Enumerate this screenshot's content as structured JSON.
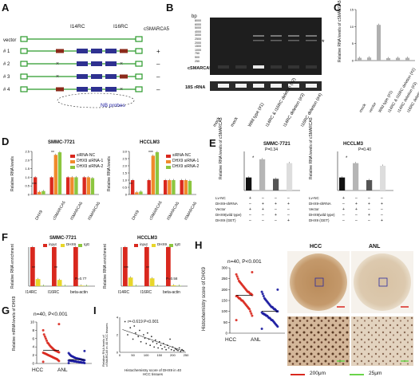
{
  "panels": {
    "A": "A",
    "B": "B",
    "C": "C",
    "D": "D",
    "E": "E",
    "F": "F",
    "G": "G",
    "H": "H",
    "I": "I"
  },
  "a": {
    "vector": "vector",
    "rows": [
      "# 1",
      "# 2",
      "# 3",
      "# 4"
    ],
    "i14": "I14RC",
    "i16": "I16RC",
    "csmarca5": "cSMARCA5",
    "signs": [
      "+",
      "–",
      "–",
      "–"
    ],
    "probe": "NB probes"
  },
  "b": {
    "bp": "bp",
    "ladder": [
      "8000",
      "6000",
      "5000",
      "4000",
      "3000",
      "2500",
      "2000",
      "1500",
      "1000",
      "750",
      "500",
      "250"
    ],
    "band": "cSMARCA5",
    "rrna": "18S rRNA",
    "star": "*",
    "lanes": [
      "mock",
      "mock",
      "Wild type (#1)",
      "I14RC & I16RC deletion (#2)",
      "I14RC deletion (#3)",
      "I16RC deletion (#4)"
    ]
  },
  "c": {
    "ylabel": "Relative RNA levels of cSMARCA5",
    "yt": [
      "0",
      "5",
      "10",
      "15"
    ],
    "cats": [
      "mock",
      "vector",
      "Wild type (#1)",
      "I14RC & I16RC deletion (#2)",
      "I14RC deletion (#3)",
      "I16RC deletion (#4)"
    ]
  },
  "d": {
    "left": "SMMC-7721",
    "right": "HCCLM3",
    "ylabel": "Relative RNA levels",
    "yl": [
      "0",
      "0.5",
      "1.0",
      "1.5",
      "2.0",
      "2.5"
    ],
    "yr": [
      "0",
      "0.5",
      "1.0",
      "1.5",
      "2.0",
      "2.5",
      "3.0"
    ],
    "legend": [
      "siRNA-NC",
      "DHX9 siRNA-1",
      "DHX9 siRNA-2"
    ],
    "cats": [
      "DHX9",
      "cSMARCA5",
      "ISMARCA5",
      "ISMARCA5"
    ],
    "sig": [
      "***",
      "**",
      "**",
      "***"
    ]
  },
  "e": {
    "left": "SMMC-7721",
    "right": "HCCLM3",
    "p1": "P=0.34",
    "p2": "P=0.40",
    "star": "*",
    "ylabel": "Relative RNA levels of cSMARCA5",
    "rows": [
      "Lv-NC",
      "DHX9-shRNA",
      "Vector",
      "DHX9(wild type)",
      "DHX9 (GET)"
    ],
    "signs": [
      [
        "+",
        "–",
        "–",
        "–"
      ],
      [
        "–",
        "+",
        "+",
        "+"
      ],
      [
        "+",
        "+",
        "–",
        "–"
      ],
      [
        "–",
        "–",
        "+",
        "–"
      ],
      [
        "–",
        "–",
        "–",
        "+"
      ]
    ]
  },
  "f": {
    "left": "SMMC-7721",
    "right": "HCCLM3",
    "legend": [
      "input",
      "DHX9",
      "IgG"
    ],
    "ylabel": "Relative RNA enrichment",
    "cats": [
      "I14RC",
      "I16RC",
      "beta-actin"
    ],
    "pl": "P=0.77",
    "pr": "P=0.58",
    "sig": [
      "**",
      "**",
      "***",
      "**"
    ]
  },
  "g": {
    "ylabel": "Relative mRNA levels of DHX9",
    "stat": "n=40,  P<0.001",
    "cats": [
      "HCC",
      "ANL"
    ],
    "yt": [
      "0",
      "2",
      "4",
      "6",
      "8",
      "10"
    ]
  },
  "h": {
    "ylabel": "Histochemistry score of DHX9",
    "stat": "n=40,  P<0.001",
    "cats": [
      "HCC",
      "ANL"
    ],
    "yt": [
      "0",
      "50",
      "100",
      "150",
      "200",
      "250",
      "300"
    ],
    "img1": "HCC",
    "img2": "ANL",
    "scale1": "200μm",
    "scale2": "25μm"
  },
  "i": {
    "ylabel": "Relative RNA levels of cSMARCA5 in 40 HCC tissues",
    "xlabel": "Histochemistry score of DHX9 in 40 HCC tissues",
    "stat": "r=-0.619     P<0.001",
    "xt": [
      "0",
      "50",
      "100",
      "150",
      "200",
      "250"
    ],
    "yt": [
      "0",
      "2",
      "4"
    ]
  },
  "colors": {
    "red": "#d9281e",
    "orange": "#f08a2c",
    "green": "#8cc63f",
    "blue": "#2e3190",
    "darkblue": "#1a1aa0",
    "gray": "#b5b5b5",
    "dark": "#333333"
  },
  "chart_data": [
    {
      "panel": "C",
      "type": "bar",
      "categories": [
        "mock",
        "vector",
        "Wild type (#1)",
        "I14RC & I16RC deletion (#2)",
        "I14RC deletion (#3)",
        "I16RC deletion (#4)"
      ],
      "values": [
        0.8,
        0.9,
        10.5,
        0.7,
        0.8,
        0.8
      ],
      "ylabel": "Relative RNA levels of cSMARCA5",
      "ylim": [
        0,
        15
      ]
    },
    {
      "panel": "D-SMMC-7721",
      "type": "bar",
      "categories": [
        "DHX9",
        "cSMARCA5",
        "ISMARCA5",
        "ISMARCA5"
      ],
      "series": [
        {
          "name": "siRNA-NC",
          "values": [
            1.0,
            1.0,
            1.0,
            1.0
          ]
        },
        {
          "name": "DHX9 siRNA-1",
          "values": [
            0.15,
            2.3,
            1.0,
            1.0
          ]
        },
        {
          "name": "DHX9 siRNA-2",
          "values": [
            0.2,
            2.45,
            1.0,
            0.95
          ]
        }
      ],
      "ylim": [
        0,
        2.5
      ]
    },
    {
      "panel": "D-HCCLM3",
      "type": "bar",
      "categories": [
        "DHX9",
        "cSMARCA5",
        "ISMARCA5",
        "ISMARCA5"
      ],
      "series": [
        {
          "name": "siRNA-NC",
          "values": [
            1.0,
            1.0,
            1.0,
            1.0
          ]
        },
        {
          "name": "DHX9 siRNA-1",
          "values": [
            0.15,
            2.7,
            1.0,
            1.0
          ]
        },
        {
          "name": "DHX9 siRNA-2",
          "values": [
            0.2,
            2.95,
            1.0,
            0.95
          ]
        }
      ],
      "ylim": [
        0,
        3.0
      ]
    },
    {
      "panel": "E-SMMC-7721",
      "type": "bar",
      "values": [
        1.0,
        2.4,
        0.9,
        2.1
      ],
      "ylim": [
        0,
        3
      ]
    },
    {
      "panel": "E-HCCLM3",
      "type": "bar",
      "values": [
        1.0,
        2.1,
        0.8,
        1.9
      ],
      "ylim": [
        0,
        3
      ]
    },
    {
      "panel": "F-SMMC-7721",
      "type": "bar",
      "categories": [
        "I14RC",
        "I16RC",
        "beta-actin"
      ],
      "series": [
        {
          "name": "input",
          "values": [
            10.0,
            10.0,
            10.0
          ]
        },
        {
          "name": "DHX9",
          "values": [
            1.8,
            1.6,
            0.15
          ]
        },
        {
          "name": "IgG",
          "values": [
            0.1,
            0.1,
            0.1
          ]
        }
      ],
      "ylim": [
        0,
        10
      ]
    },
    {
      "panel": "F-HCCLM3",
      "type": "bar",
      "categories": [
        "I14RC",
        "I16RC",
        "beta-actin"
      ],
      "series": [
        {
          "name": "input",
          "values": [
            10.0,
            10.0,
            10.0
          ]
        },
        {
          "name": "DHX9",
          "values": [
            2.2,
            2.0,
            0.2
          ]
        },
        {
          "name": "IgG",
          "values": [
            0.1,
            0.1,
            0.1
          ]
        }
      ],
      "ylim": [
        0,
        10
      ]
    },
    {
      "panel": "G",
      "type": "scatter",
      "categories": [
        "HCC",
        "ANL"
      ],
      "series": [
        {
          "name": "HCC",
          "values": [
            0.4,
            0.6,
            0.8,
            1.0,
            1.1,
            1.2,
            1.3,
            1.4,
            1.5,
            1.6,
            1.7,
            1.8,
            1.9,
            2.0,
            2.1,
            2.2,
            2.3,
            2.4,
            2.5,
            2.6,
            2.7,
            2.8,
            2.9,
            3.0,
            3.1,
            3.2,
            3.4,
            3.6,
            3.8,
            4.0,
            4.2,
            4.5,
            4.8,
            5.0,
            5.5,
            6.0,
            6.5,
            7.0,
            8.0,
            9.5
          ]
        },
        {
          "name": "ANL",
          "values": [
            0.1,
            0.1,
            0.2,
            0.2,
            0.2,
            0.3,
            0.3,
            0.3,
            0.4,
            0.4,
            0.4,
            0.5,
            0.5,
            0.5,
            0.6,
            0.6,
            0.6,
            0.7,
            0.7,
            0.7,
            0.8,
            0.8,
            0.9,
            0.9,
            1.0,
            1.0,
            1.1,
            1.1,
            1.2,
            1.2,
            1.3,
            1.4,
            1.5,
            1.6,
            1.7,
            1.8,
            2.0,
            2.2,
            2.5,
            3.0
          ]
        }
      ],
      "ylim": [
        0,
        10
      ]
    },
    {
      "panel": "H",
      "type": "scatter",
      "categories": [
        "HCC",
        "ANL"
      ],
      "series": [
        {
          "name": "HCC",
          "values": [
            60,
            80,
            90,
            100,
            110,
            115,
            120,
            125,
            130,
            135,
            140,
            145,
            150,
            150,
            155,
            160,
            160,
            165,
            170,
            170,
            175,
            180,
            180,
            185,
            190,
            190,
            195,
            200,
            205,
            210,
            215,
            220,
            225,
            230,
            235,
            240,
            250,
            260,
            270,
            280
          ]
        },
        {
          "name": "ANL",
          "values": [
            20,
            30,
            35,
            40,
            45,
            50,
            55,
            60,
            60,
            65,
            70,
            70,
            75,
            80,
            80,
            85,
            85,
            90,
            90,
            95,
            100,
            100,
            105,
            110,
            110,
            115,
            120,
            120,
            125,
            130,
            135,
            140,
            145,
            150,
            155,
            160,
            170,
            180,
            190,
            200
          ]
        }
      ],
      "ylim": [
        0,
        300
      ]
    },
    {
      "panel": "I",
      "type": "scatter",
      "x": [
        20,
        30,
        40,
        50,
        55,
        60,
        70,
        75,
        80,
        90,
        95,
        100,
        105,
        110,
        115,
        120,
        125,
        130,
        135,
        140,
        145,
        150,
        155,
        160,
        165,
        170,
        175,
        180,
        185,
        190,
        195,
        200,
        205,
        210,
        215,
        220,
        225,
        230,
        235,
        240
      ],
      "y": [
        3.5,
        2.0,
        2.8,
        1.5,
        3.0,
        2.2,
        1.8,
        2.5,
        1.2,
        2.0,
        1.6,
        1.0,
        2.2,
        1.5,
        0.8,
        1.8,
        1.2,
        0.6,
        1.4,
        1.0,
        0.5,
        1.2,
        0.8,
        0.4,
        1.0,
        0.6,
        0.3,
        0.8,
        0.5,
        1.5,
        0.3,
        0.6,
        0.2,
        0.4,
        0.3,
        0.2,
        0.5,
        0.1,
        0.3,
        0.2
      ],
      "ylim": [
        0,
        4
      ],
      "xlim": [
        0,
        250
      ]
    }
  ]
}
